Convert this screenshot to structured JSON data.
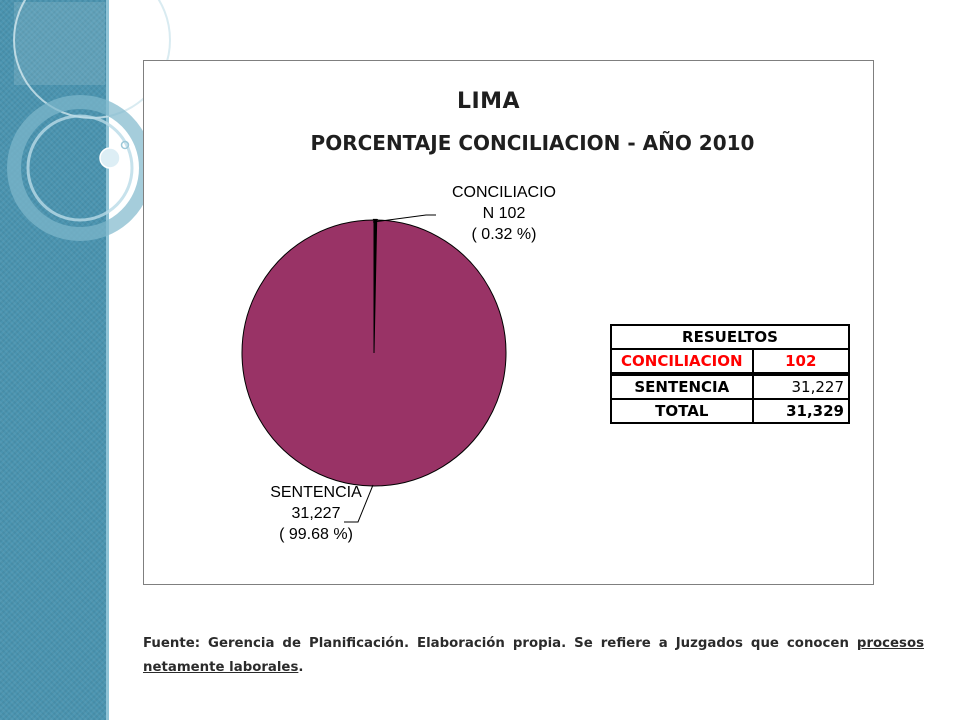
{
  "chart_data": {
    "type": "pie",
    "title": "LIMA",
    "subtitle": "PORCENTAJE CONCILIACION - AÑO 2010",
    "slices": [
      {
        "label_line1": "CONCILIACIO",
        "label_line2": "N 102",
        "label_line3": "( 0.32 %)",
        "category": "CONCILIACION",
        "value": 102,
        "percent": 0.32,
        "color": "#000000"
      },
      {
        "label_line1": "SENTENCIA",
        "label_line2": "31,227",
        "label_line3": "( 99.68 %)",
        "category": "SENTENCIA",
        "value": 31227,
        "percent": 99.68,
        "color": "#993366"
      }
    ]
  },
  "table": {
    "header": "RESUELTOS",
    "rows": [
      {
        "label": "CONCILIACION",
        "value": "102"
      },
      {
        "label": "SENTENCIA",
        "value": "31,227"
      },
      {
        "label": "TOTAL",
        "value": "31,329"
      }
    ]
  },
  "source": {
    "text": "Fuente: Gerencia de Planificación. Elaboración propia. Se refiere a Juzgados que conocen",
    "link_text": "procesos netamente laborales",
    "trailing": "."
  }
}
